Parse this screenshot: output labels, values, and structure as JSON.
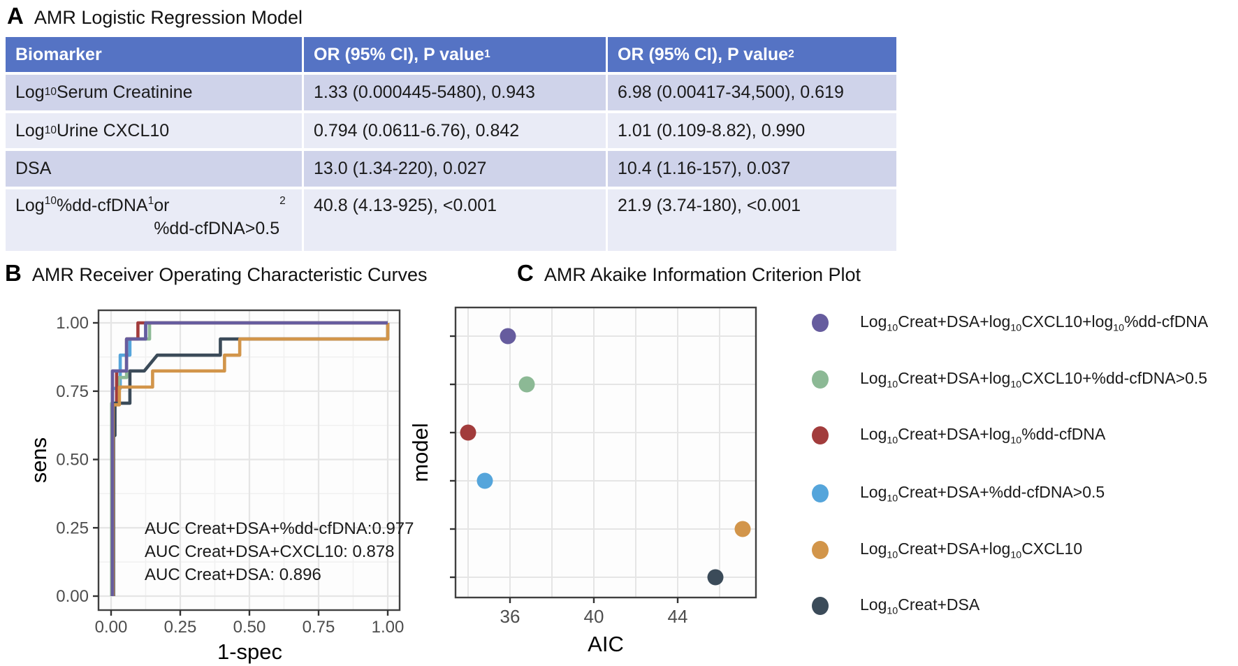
{
  "panel_a": {
    "label": "A",
    "title": "AMR Logistic Regression Model",
    "table": {
      "header": [
        "Biomarker",
        "OR (95% CI), P value^1^",
        "OR (95% CI), P value^2^"
      ],
      "rows": [
        [
          "Log~10~ Serum Creatinine",
          "1.33 (0.000445-5480), 0.943",
          "6.98 (0.00417-34,500), 0.619"
        ],
        [
          "Log~10~ Urine CXCL10",
          "0.794 (0.0611-6.76), 0.842",
          "1.01 (0.109-8.82), 0.990"
        ],
        [
          "DSA",
          "13.0 (1.34-220), 0.027",
          "10.4 (1.16-157), 0.037"
        ],
        [
          "Log~10~ %dd-cfDNA^1^ or\n%dd-cfDNA>0.5^2^",
          "40.8 (4.13-925), <0.001",
          "21.9 (3.74-180), <0.001"
        ]
      ],
      "colors": {
        "header_bg": "#5573C4",
        "header_text": "#FFFFFF",
        "row_dark": "#CFD3EA",
        "row_light": "#E9EBF6"
      }
    }
  },
  "panel_b": {
    "label": "B",
    "title": "AMR Receiver Operating Characteristic Curves"
  },
  "panel_c": {
    "label": "C",
    "title": "AMR Akaike Information Criterion Plot"
  },
  "legend": {
    "items": [
      {
        "label": "Log~10~Creat+DSA+log~10~CXCL10+log~10~%dd-cfDNA",
        "color": "#665C9E"
      },
      {
        "label": "Log~10~Creat+DSA+log~10~CXCL10+%dd-cfDNA>0.5",
        "color": "#8CB995"
      },
      {
        "label": "Log~10~Creat+DSA+log~10~%dd-cfDNA",
        "color": "#A23C3C"
      },
      {
        "label": "Log~10~Creat+DSA+%dd-cfDNA>0.5",
        "color": "#55A5DB"
      },
      {
        "label": "Log~10~Creat+DSA+log~10~CXCL10",
        "color": "#D2954A"
      },
      {
        "label": "Log~10~Creat+DSA",
        "color": "#3B4B59"
      }
    ]
  },
  "chart_data": [
    {
      "id": "roc",
      "type": "line",
      "title": "AMR Receiver Operating Characteristic Curves",
      "xlabel": "1-spec",
      "ylabel": "sens",
      "xlim": [
        -0.045,
        1.045
      ],
      "ylim": [
        -0.03,
        1.03
      ],
      "x_ticks": [
        0,
        0.25,
        0.5,
        0.75,
        1
      ],
      "x_tick_labels": [
        "0.00",
        "0.25",
        "0.50",
        "0.75",
        "1.00"
      ],
      "y_ticks": [
        0,
        0.25,
        0.5,
        0.75,
        1
      ],
      "y_tick_labels": [
        "0.00",
        "0.25",
        "0.50",
        "0.75",
        "1.00"
      ],
      "minor_ticks": [
        0.125,
        0.375,
        0.625,
        0.875
      ],
      "grid": true,
      "legend_position": "none",
      "annotations": [
        "AUC Creat+DSA+%dd-cfDNA:0.977",
        "AUC Creat+DSA+CXCL10: 0.878",
        "AUC Creat+DSA: 0.896"
      ],
      "series": [
        {
          "name": "Log10Creat+DSA+%dd-cfDNA>0.5",
          "color": "#55A5DB",
          "points": [
            [
              0.005,
              0
            ],
            [
              0.005,
              0.76
            ],
            [
              0.033,
              0.76
            ],
            [
              0.033,
              0.882
            ],
            [
              0.068,
              0.882
            ],
            [
              0.068,
              0.941
            ],
            [
              0.125,
              0.941
            ],
            [
              0.125,
              1
            ],
            [
              1,
              1
            ]
          ]
        },
        {
          "name": "Log10Creat+DSA+log10CXCL10+%dd-cfDNA>0.5",
          "color": "#8CB995",
          "points": [
            [
              0.002,
              0
            ],
            [
              0.002,
              0.706
            ],
            [
              0.028,
              0.706
            ],
            [
              0.028,
              0.8
            ],
            [
              0.056,
              0.8
            ],
            [
              0.056,
              0.941
            ],
            [
              0.139,
              0.941
            ],
            [
              0.139,
              1
            ],
            [
              1,
              1
            ]
          ]
        },
        {
          "name": "Log10Creat+DSA+log10%dd-cfDNA",
          "color": "#A23C3C",
          "points": [
            [
              0.005,
              0
            ],
            [
              0.005,
              0.7
            ],
            [
              0.02,
              0.7
            ],
            [
              0.02,
              0.824
            ],
            [
              0.056,
              0.824
            ],
            [
              0.056,
              0.941
            ],
            [
              0.097,
              0.941
            ],
            [
              0.097,
              1
            ],
            [
              1,
              1
            ]
          ]
        },
        {
          "name": "Log10Creat+DSA",
          "color": "#3B4B59",
          "points": [
            [
              0.009,
              0
            ],
            [
              0.009,
              0.588
            ],
            [
              0.014,
              0.588
            ],
            [
              0.014,
              0.706
            ],
            [
              0.068,
              0.706
            ],
            [
              0.068,
              0.824
            ],
            [
              0.12,
              0.824
            ],
            [
              0.167,
              0.882
            ],
            [
              0.395,
              0.882
            ],
            [
              0.395,
              0.941
            ],
            [
              1,
              0.941
            ],
            [
              1,
              1
            ]
          ]
        },
        {
          "name": "Log10Creat+DSA+log10CXCL10",
          "color": "#D2954A",
          "points": [
            [
              0.007,
              0
            ],
            [
              0.007,
              0.7
            ],
            [
              0.03,
              0.7
            ],
            [
              0.03,
              0.765
            ],
            [
              0.15,
              0.765
            ],
            [
              0.15,
              0.824
            ],
            [
              0.41,
              0.824
            ],
            [
              0.41,
              0.882
            ],
            [
              0.465,
              0.882
            ],
            [
              0.465,
              0.941
            ],
            [
              1,
              0.941
            ],
            [
              1,
              1
            ]
          ]
        },
        {
          "name": "Log10Creat+DSA+log10CXCL10+log10%dd-cfDNA",
          "color": "#665C9E",
          "points": [
            [
              0.005,
              0
            ],
            [
              0.005,
              0.824
            ],
            [
              0.056,
              0.824
            ],
            [
              0.056,
              0.941
            ],
            [
              0.125,
              0.941
            ],
            [
              0.125,
              1
            ],
            [
              1,
              1
            ]
          ]
        }
      ]
    },
    {
      "id": "aic",
      "type": "scatter",
      "title": "AMR Akaike Information Criterion Plot",
      "xlabel": "AIC",
      "ylabel": "model",
      "xlim": [
        33.4,
        47.7
      ],
      "x_ticks": [
        36,
        40,
        44
      ],
      "x_tick_labels": [
        "36",
        "40",
        "44"
      ],
      "x_gridlines": [
        34,
        36,
        38,
        40,
        42,
        44,
        46
      ],
      "grid": true,
      "points": [
        {
          "model": "Log10Creat+DSA+log10CXCL10+log10%dd-cfDNA",
          "color": "#665C9E",
          "aic": 35.9,
          "row": 0
        },
        {
          "model": "Log10Creat+DSA+log10CXCL10+%dd-cfDNA>0.5",
          "color": "#8CB995",
          "aic": 36.8,
          "row": 1
        },
        {
          "model": "Log10Creat+DSA+log10%dd-cfDNA",
          "color": "#A23C3C",
          "aic": 34.0,
          "row": 2
        },
        {
          "model": "Log10Creat+DSA+%dd-cfDNA>0.5",
          "color": "#55A5DB",
          "aic": 34.8,
          "row": 3
        },
        {
          "model": "Log10Creat+DSA+log10CXCL10",
          "color": "#D2954A",
          "aic": 47.1,
          "row": 4
        },
        {
          "model": "Log10Creat+DSA",
          "color": "#3B4B59",
          "aic": 45.8,
          "row": 5
        }
      ]
    }
  ],
  "style": {
    "grid_major": "#E5E5E5",
    "grid_minor": "#F1F1F1",
    "panel_border": "#404040",
    "tick_color": "#333333",
    "tick_label_color": "#4D4D4D"
  }
}
